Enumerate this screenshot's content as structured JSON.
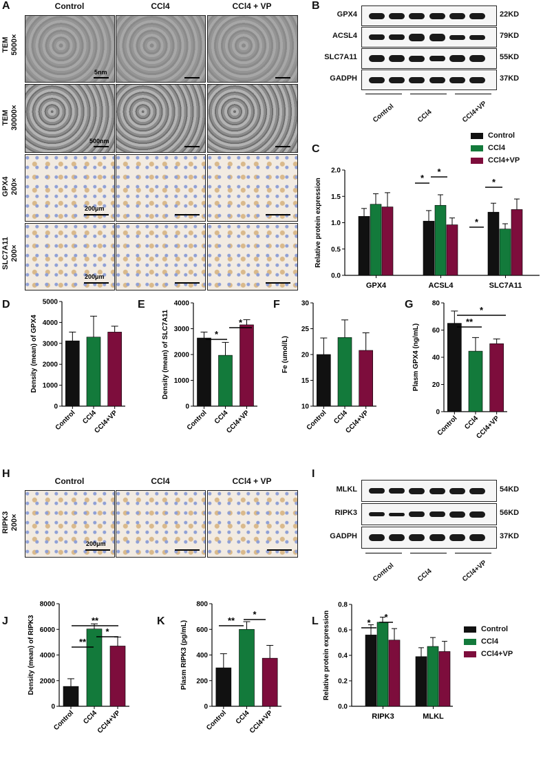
{
  "panels": {
    "A": "A",
    "B": "B",
    "C": "C",
    "D": "D",
    "E": "E",
    "F": "F",
    "G": "G",
    "H": "H",
    "I": "I",
    "J": "J",
    "K": "K",
    "L": "L"
  },
  "micro": {
    "col_heads": [
      "Control",
      "CCl4",
      "CCl4 + VP"
    ],
    "row_labels": [
      "TEM\n5000×",
      "TEM\n30000×",
      "GPX4\n200×",
      "SLC7A11\n200×"
    ],
    "scales": [
      "5nm",
      "500nm",
      "200μm",
      "200μm"
    ],
    "h_row_label": "RIPK3\n200×",
    "h_scale": "200μm"
  },
  "western_B": {
    "proteins": [
      "GPX4",
      "ACSL4",
      "SLC7A11",
      "GADPH"
    ],
    "sizes": [
      "22KD",
      "79KD",
      "55KD",
      "37KD"
    ],
    "groups": [
      "Control",
      "CCl4",
      "CCl4+VP"
    ]
  },
  "western_I": {
    "proteins": [
      "MLKL",
      "RIPK3",
      "GADPH"
    ],
    "sizes": [
      "54KD",
      "56KD",
      "37KD"
    ],
    "groups": [
      "Control",
      "CCl4",
      "CCl4+VP"
    ]
  },
  "legend": {
    "items": [
      "Control",
      "CCl4",
      "CCl4+VP"
    ]
  },
  "colors": {
    "control": "#111111",
    "ccl4": "#137a3b",
    "vp": "#7d0d3c"
  },
  "chart_data": [
    {
      "id": "C",
      "type": "bar",
      "categories": [
        "GPX4",
        "ACSL4",
        "SLC7A11"
      ],
      "series": [
        {
          "name": "Control",
          "values": [
            1.12,
            1.03,
            1.2
          ],
          "err": [
            0.15,
            0.2,
            0.17
          ]
        },
        {
          "name": "CCl4",
          "values": [
            1.35,
            1.33,
            0.88
          ],
          "err": [
            0.2,
            0.2,
            0.1
          ]
        },
        {
          "name": "CCl4+VP",
          "values": [
            1.3,
            0.96,
            1.25
          ],
          "err": [
            0.27,
            0.13,
            0.2
          ]
        }
      ],
      "ylabel": "Relative protein expression",
      "ylim": [
        0,
        2.0
      ],
      "yticks": [
        0,
        0.5,
        1.0,
        1.5,
        2.0
      ],
      "ytick_labels": [
        "0.0",
        "0.5",
        "1.0",
        "1.5",
        "2.0"
      ],
      "sig": [
        "*",
        "*",
        "*",
        "*"
      ]
    },
    {
      "id": "D",
      "type": "bar",
      "categories": [
        "Control",
        "CCl4",
        "CCl4+VP"
      ],
      "values": [
        3120,
        3300,
        3540
      ],
      "err": [
        420,
        1000,
        280
      ],
      "ylabel": "Density (mean) of GPX4",
      "ylim": [
        0,
        5000
      ],
      "yticks": [
        0,
        1000,
        2000,
        3000,
        4000,
        5000
      ],
      "ytick_labels": [
        "0",
        "1000",
        "2000",
        "3000",
        "4000",
        "5000"
      ],
      "sig": []
    },
    {
      "id": "E",
      "type": "bar",
      "categories": [
        "Control",
        "CCl4",
        "CCl4+VP"
      ],
      "values": [
        2640,
        1970,
        3150
      ],
      "err": [
        230,
        500,
        200
      ],
      "ylabel": "Density (mean) of SLC7A11",
      "ylim": [
        0,
        4000
      ],
      "yticks": [
        0,
        1000,
        2000,
        3000,
        4000
      ],
      "ytick_labels": [
        "0",
        "1000",
        "2000",
        "3000",
        "4000"
      ],
      "sig": [
        "*",
        "*"
      ]
    },
    {
      "id": "F",
      "type": "bar",
      "categories": [
        "Control",
        "CCl4",
        "CCl4+VP"
      ],
      "values": [
        20,
        23.3,
        20.8
      ],
      "err": [
        3.2,
        3.4,
        3.4
      ],
      "ylabel": "Fe (umol/L)",
      "ylim": [
        10,
        30
      ],
      "yticks": [
        10,
        15,
        20,
        25,
        30
      ],
      "ytick_labels": [
        "10",
        "15",
        "20",
        "25",
        "30"
      ],
      "sig": []
    },
    {
      "id": "G",
      "type": "bar",
      "categories": [
        "Control",
        "CCl4",
        "CCl4+VP"
      ],
      "values": [
        65,
        44.5,
        50
      ],
      "err": [
        9,
        10,
        3.5
      ],
      "ylabel": "Plasm GPX4 (ng/mL)",
      "ylim": [
        0,
        80
      ],
      "yticks": [
        0,
        20,
        40,
        60,
        80
      ],
      "ytick_labels": [
        "0",
        "20",
        "40",
        "60",
        "80"
      ],
      "sig": [
        "**",
        "*"
      ]
    },
    {
      "id": "J",
      "type": "bar",
      "categories": [
        "Control",
        "CCl4",
        "CCl4+VP"
      ],
      "values": [
        1550,
        6030,
        4700
      ],
      "err": [
        600,
        400,
        700
      ],
      "ylabel": "Density (mean) of RIPK3",
      "ylim": [
        0,
        8000
      ],
      "yticks": [
        0,
        2000,
        4000,
        6000,
        8000
      ],
      "ytick_labels": [
        "0",
        "2000",
        "4000",
        "6000",
        "8000"
      ],
      "sig": [
        "**",
        "**",
        "*"
      ]
    },
    {
      "id": "K",
      "type": "bar",
      "categories": [
        "Control",
        "CCl4",
        "CCl4+VP"
      ],
      "values": [
        300,
        600,
        375
      ],
      "err": [
        110,
        60,
        100
      ],
      "ylabel": "Plasm RIPK3 (pg/mL)",
      "ylim": [
        0,
        800
      ],
      "yticks": [
        0,
        200,
        400,
        600,
        800
      ],
      "ytick_labels": [
        "0",
        "200",
        "400",
        "600",
        "800"
      ],
      "sig": [
        "**",
        "*"
      ]
    },
    {
      "id": "L",
      "type": "bar",
      "categories": [
        "RIPK3",
        "MLKL"
      ],
      "series": [
        {
          "name": "Control",
          "values": [
            0.56,
            0.39
          ],
          "err": [
            0.08,
            0.07
          ]
        },
        {
          "name": "CCl4",
          "values": [
            0.66,
            0.47
          ],
          "err": [
            0.04,
            0.07
          ]
        },
        {
          "name": "CCl4+VP",
          "values": [
            0.52,
            0.43
          ],
          "err": [
            0.09,
            0.08
          ]
        }
      ],
      "ylabel": "Relative protein expression",
      "ylim": [
        0,
        0.8
      ],
      "yticks": [
        0,
        0.2,
        0.4,
        0.6,
        0.8
      ],
      "ytick_labels": [
        "0.0",
        "0.2",
        "0.4",
        "0.6",
        "0.8"
      ],
      "sig": [
        "*",
        "*"
      ]
    }
  ]
}
